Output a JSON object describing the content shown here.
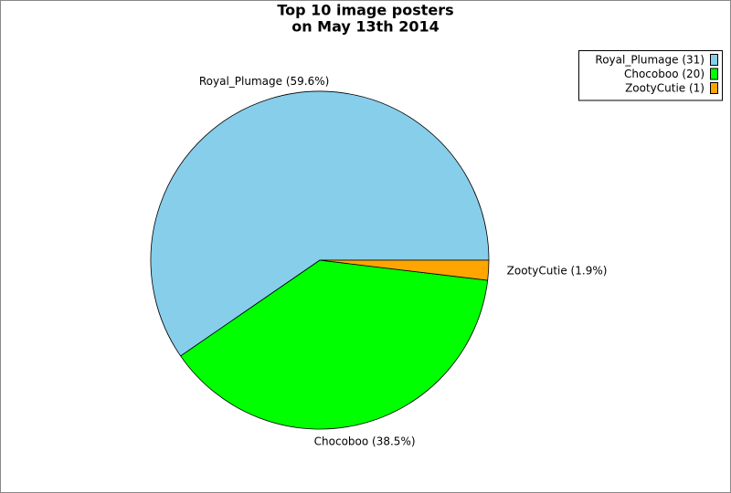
{
  "chart_data": {
    "type": "pie",
    "title": [
      "Top 10 image posters",
      "on May 13th 2014"
    ],
    "values": [
      59.6,
      38.5,
      1.9
    ],
    "value_labels": [
      "Royal_Plumage (59.6%)",
      "Chocoboo (38.5%)",
      "ZootyCutie (1.9%)"
    ],
    "counts": [
      31,
      20,
      1
    ],
    "count_labels": [
      "Royal_Plumage (31)",
      "Chocoboo (20)",
      "ZootyCutie (1)"
    ],
    "colors": [
      "#87ceeb",
      "#00ff00",
      "#ffa500"
    ],
    "legend": "top-right"
  }
}
